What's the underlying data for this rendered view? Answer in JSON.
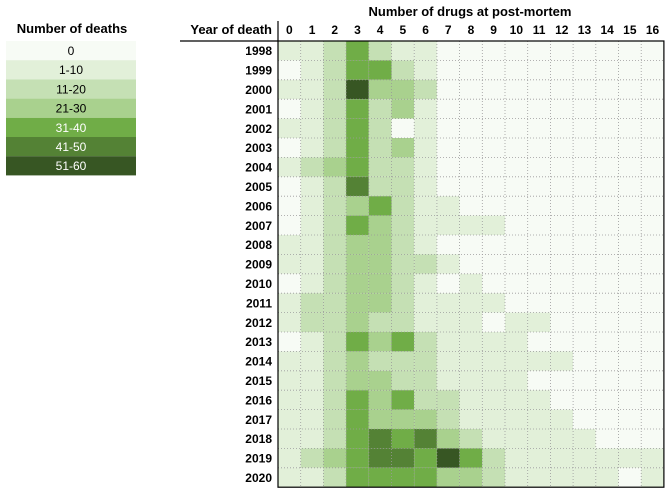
{
  "chart_data": {
    "type": "heatmap",
    "title": "",
    "xlabel": "Number of drugs at post-mortem",
    "ylabel": "Year of death",
    "x_categories": [
      "0",
      "1",
      "2",
      "3",
      "4",
      "5",
      "6",
      "7",
      "8",
      "9",
      "10",
      "11",
      "12",
      "13",
      "14",
      "15",
      "16"
    ],
    "y_categories": [
      "1998",
      "1999",
      "2000",
      "2001",
      "2002",
      "2003",
      "2004",
      "2005",
      "2006",
      "2007",
      "2008",
      "2009",
      "2010",
      "2011",
      "2012",
      "2013",
      "2014",
      "2015",
      "2016",
      "2017",
      "2018",
      "2019",
      "2020"
    ],
    "legend": {
      "title": "Number of deaths",
      "bins": [
        {
          "label": "0",
          "color": "#f7fbf5"
        },
        {
          "label": "1-10",
          "color": "#e2f0d9"
        },
        {
          "label": "11-20",
          "color": "#c5e0b4"
        },
        {
          "label": "21-30",
          "color": "#a9d18e"
        },
        {
          "label": "31-40",
          "color": "#70ad47"
        },
        {
          "label": "41-50",
          "color": "#548235"
        },
        {
          "label": "51-60",
          "color": "#375623"
        }
      ]
    },
    "value_bins_note": "cell values are legend bin indices 0-6",
    "values": [
      [
        1,
        1,
        2,
        4,
        2,
        1,
        1,
        0,
        0,
        0,
        0,
        0,
        0,
        0,
        0,
        0,
        0
      ],
      [
        0,
        1,
        2,
        4,
        4,
        2,
        1,
        0,
        0,
        0,
        0,
        0,
        0,
        0,
        0,
        0,
        0
      ],
      [
        1,
        1,
        2,
        6,
        3,
        3,
        2,
        0,
        0,
        0,
        0,
        0,
        0,
        0,
        0,
        0,
        0
      ],
      [
        0,
        1,
        2,
        4,
        2,
        3,
        1,
        0,
        0,
        0,
        0,
        0,
        0,
        0,
        0,
        0,
        0
      ],
      [
        1,
        1,
        2,
        4,
        2,
        0,
        1,
        0,
        0,
        0,
        0,
        0,
        0,
        0,
        0,
        0,
        0
      ],
      [
        0,
        1,
        2,
        4,
        2,
        3,
        1,
        0,
        0,
        0,
        0,
        0,
        0,
        0,
        0,
        0,
        0
      ],
      [
        1,
        2,
        3,
        4,
        2,
        2,
        1,
        0,
        0,
        0,
        0,
        0,
        0,
        0,
        0,
        0,
        0
      ],
      [
        0,
        1,
        2,
        5,
        2,
        2,
        1,
        0,
        0,
        0,
        0,
        0,
        0,
        0,
        0,
        0,
        0
      ],
      [
        0,
        1,
        2,
        3,
        4,
        2,
        1,
        1,
        0,
        0,
        0,
        0,
        0,
        0,
        0,
        0,
        0
      ],
      [
        0,
        1,
        2,
        4,
        3,
        2,
        1,
        1,
        1,
        1,
        0,
        0,
        0,
        0,
        0,
        0,
        0
      ],
      [
        1,
        1,
        2,
        3,
        3,
        2,
        1,
        0,
        0,
        0,
        0,
        0,
        0,
        0,
        0,
        0,
        0
      ],
      [
        1,
        1,
        2,
        3,
        3,
        2,
        2,
        1,
        0,
        0,
        0,
        0,
        0,
        0,
        0,
        0,
        0
      ],
      [
        0,
        1,
        2,
        3,
        3,
        2,
        1,
        0,
        1,
        0,
        0,
        0,
        0,
        0,
        0,
        0,
        0
      ],
      [
        1,
        2,
        2,
        3,
        3,
        2,
        1,
        1,
        1,
        1,
        0,
        0,
        0,
        0,
        0,
        0,
        0
      ],
      [
        1,
        2,
        2,
        3,
        2,
        2,
        1,
        1,
        1,
        0,
        1,
        1,
        0,
        0,
        0,
        0,
        0
      ],
      [
        0,
        1,
        2,
        4,
        3,
        4,
        2,
        1,
        1,
        1,
        1,
        0,
        0,
        0,
        0,
        0,
        0
      ],
      [
        1,
        1,
        2,
        3,
        2,
        2,
        2,
        1,
        1,
        1,
        1,
        1,
        1,
        0,
        0,
        0,
        0
      ],
      [
        1,
        1,
        2,
        3,
        3,
        2,
        2,
        1,
        1,
        1,
        1,
        0,
        0,
        0,
        0,
        0,
        0
      ],
      [
        1,
        1,
        2,
        4,
        3,
        4,
        2,
        2,
        1,
        1,
        1,
        1,
        0,
        0,
        0,
        0,
        0
      ],
      [
        1,
        1,
        2,
        4,
        3,
        3,
        3,
        2,
        1,
        1,
        1,
        1,
        1,
        0,
        0,
        0,
        0
      ],
      [
        1,
        1,
        2,
        4,
        5,
        4,
        5,
        3,
        2,
        1,
        1,
        1,
        1,
        1,
        0,
        0,
        0
      ],
      [
        1,
        2,
        3,
        4,
        5,
        5,
        4,
        6,
        4,
        2,
        1,
        1,
        1,
        1,
        1,
        1,
        1
      ],
      [
        1,
        1,
        2,
        4,
        4,
        4,
        4,
        3,
        3,
        2,
        1,
        1,
        1,
        1,
        1,
        0,
        1
      ]
    ]
  }
}
